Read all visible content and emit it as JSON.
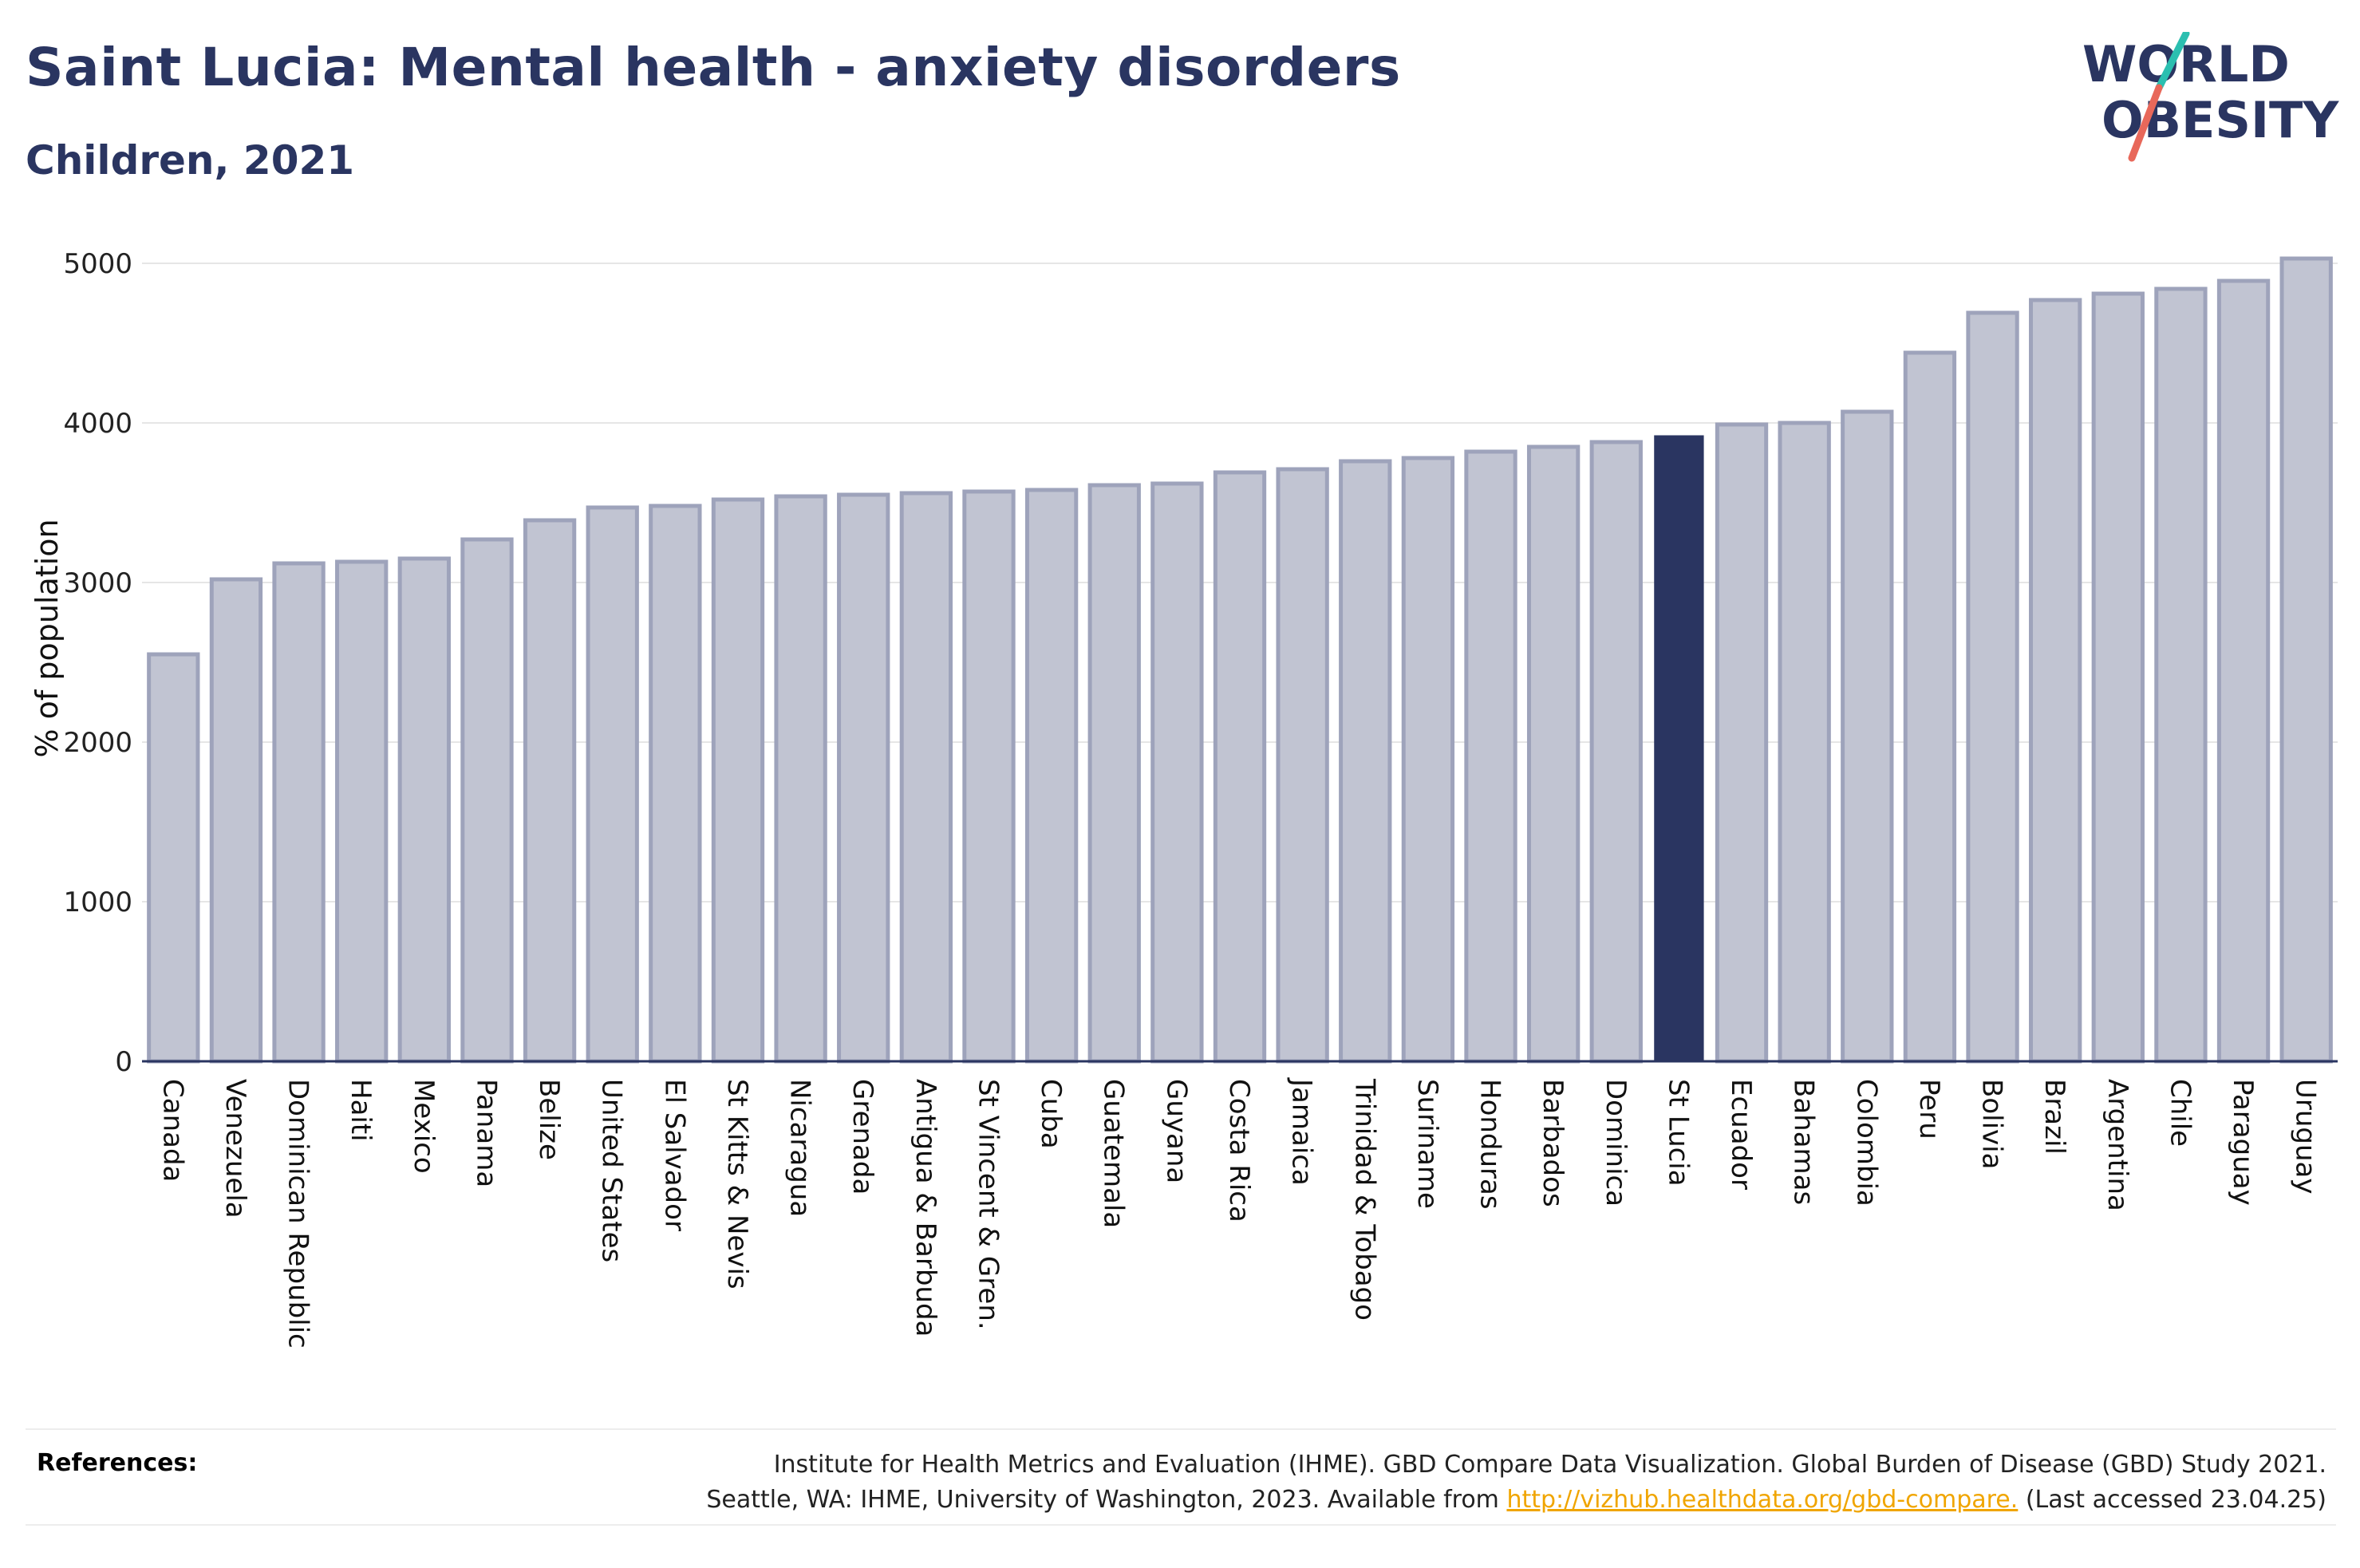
{
  "header": {
    "title": "Saint Lucia: Mental health - anxiety disorders",
    "subtitle": "Children, 2021"
  },
  "logo": {
    "line1": "WORLD",
    "line2": "OBESITY",
    "colors": {
      "text": "#2a3561",
      "slash_teal": "#2bbfb0",
      "slash_coral": "#e8685a"
    }
  },
  "colors": {
    "bar": "#c1c4d2",
    "bar_border": "#9ea3bb",
    "highlight": "#2a3561",
    "gridline": "#e6e6e6",
    "axis": "#2a3561"
  },
  "chart_data": {
    "type": "bar",
    "ylabel": "% of population",
    "ylim": [
      0,
      5000
    ],
    "yticks": [
      0,
      1000,
      2000,
      3000,
      4000,
      5000
    ],
    "grid": true,
    "highlight": "St Lucia",
    "categories": [
      "Canada",
      "Venezuela",
      "Dominican Republic",
      "Haiti",
      "Mexico",
      "Panama",
      "Belize",
      "United States",
      "El Salvador",
      "St Kitts & Nevis",
      "Nicaragua",
      "Grenada",
      "Antigua & Barbuda",
      "St Vincent & Gren.",
      "Cuba",
      "Guatemala",
      "Guyana",
      "Costa Rica",
      "Jamaica",
      "Trinidad & Tobago",
      "Suriname",
      "Honduras",
      "Barbados",
      "Dominica",
      "St Lucia",
      "Ecuador",
      "Bahamas",
      "Colombia",
      "Peru",
      "Bolivia",
      "Brazil",
      "Argentina",
      "Chile",
      "Paraguay",
      "Uruguay"
    ],
    "values": [
      2550,
      3020,
      3120,
      3130,
      3150,
      3270,
      3390,
      3470,
      3480,
      3520,
      3540,
      3550,
      3560,
      3570,
      3580,
      3610,
      3620,
      3690,
      3710,
      3760,
      3780,
      3820,
      3850,
      3880,
      3920,
      3990,
      4000,
      4070,
      4440,
      4690,
      4770,
      4810,
      4840,
      4890,
      5030
    ]
  },
  "references": {
    "label": "References:",
    "line1": "Institute for Health Metrics and Evaluation (IHME). GBD Compare Data Visualization. Global Burden of Disease (GBD) Study 2021.",
    "line2_prefix": "Seattle, WA: IHME, University of Washington, 2023. Available from ",
    "link": "http://vizhub.healthdata.org/gbd-compare.",
    "line2_suffix": " (Last accessed 23.04.25)"
  }
}
